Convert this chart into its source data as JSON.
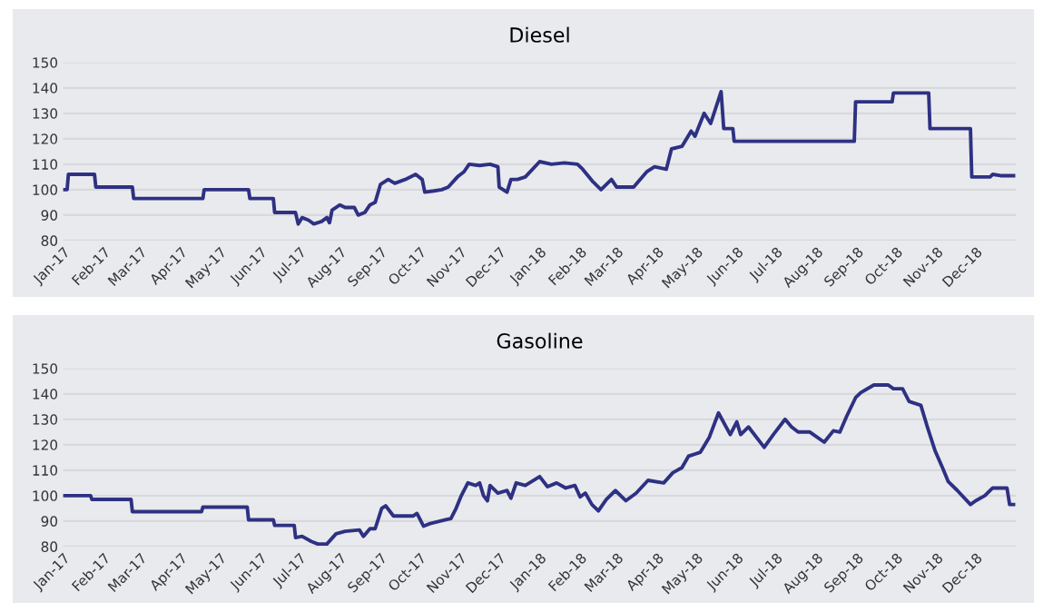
{
  "chart_data": [
    {
      "type": "line",
      "title": "Diesel",
      "ylim": [
        80,
        150
      ],
      "yticks": [
        80,
        90,
        100,
        110,
        120,
        130,
        140,
        150
      ],
      "grid": "y",
      "marker": "none",
      "line_style": "solid",
      "xlim": [
        "2017-01-01",
        "2019-01-01"
      ],
      "xticks": [
        {
          "value": "2017-01-01",
          "label": "Jan-17"
        },
        {
          "value": "2017-02-01",
          "label": "Feb-17"
        },
        {
          "value": "2017-03-01",
          "label": "Mar-17"
        },
        {
          "value": "2017-04-01",
          "label": "Apr-17"
        },
        {
          "value": "2017-05-01",
          "label": "May-17"
        },
        {
          "value": "2017-06-01",
          "label": "Jun-17"
        },
        {
          "value": "2017-07-01",
          "label": "Jul-17"
        },
        {
          "value": "2017-08-01",
          "label": "Aug-17"
        },
        {
          "value": "2017-09-01",
          "label": "Sep-17"
        },
        {
          "value": "2017-10-01",
          "label": "Oct-17"
        },
        {
          "value": "2017-11-01",
          "label": "Nov-17"
        },
        {
          "value": "2017-12-01",
          "label": "Dec-17"
        },
        {
          "value": "2018-01-01",
          "label": "Jan-18"
        },
        {
          "value": "2018-02-01",
          "label": "Feb-18"
        },
        {
          "value": "2018-03-01",
          "label": "Mar-18"
        },
        {
          "value": "2018-04-01",
          "label": "Apr-18"
        },
        {
          "value": "2018-05-01",
          "label": "May-18"
        },
        {
          "value": "2018-06-01",
          "label": "Jun-18"
        },
        {
          "value": "2018-07-01",
          "label": "Jul-18"
        },
        {
          "value": "2018-08-01",
          "label": "Aug-18"
        },
        {
          "value": "2018-09-01",
          "label": "Sep-18"
        },
        {
          "value": "2018-10-01",
          "label": "Oct-18"
        },
        {
          "value": "2018-11-01",
          "label": "Nov-18"
        },
        {
          "value": "2018-12-01",
          "label": "Dec-18"
        }
      ],
      "series": [
        {
          "color": "#2e3182",
          "x": [
            "2017-01-01",
            "2017-01-04",
            "2017-01-05",
            "2017-01-25",
            "2017-01-26",
            "2017-02-23",
            "2017-02-24",
            "2017-04-18",
            "2017-04-19",
            "2017-05-23",
            "2017-05-24",
            "2017-06-11",
            "2017-06-12",
            "2017-06-28",
            "2017-06-30",
            "2017-07-03",
            "2017-07-08",
            "2017-07-12",
            "2017-07-18",
            "2017-07-22",
            "2017-07-24",
            "2017-07-26",
            "2017-08-01",
            "2017-08-05",
            "2017-08-12",
            "2017-08-15",
            "2017-08-20",
            "2017-08-24",
            "2017-08-28",
            "2017-09-01",
            "2017-09-07",
            "2017-09-12",
            "2017-09-20",
            "2017-09-28",
            "2017-10-03",
            "2017-10-05",
            "2017-10-12",
            "2017-10-18",
            "2017-10-23",
            "2017-10-30",
            "2017-11-04",
            "2017-11-08",
            "2017-11-16",
            "2017-11-24",
            "2017-11-30",
            "2017-12-01",
            "2017-12-07",
            "2017-12-10",
            "2017-12-15",
            "2017-12-21",
            "2018-01-01",
            "2018-01-10",
            "2018-01-20",
            "2018-01-30",
            "2018-02-03",
            "2018-02-11",
            "2018-02-17",
            "2018-02-25",
            "2018-03-01",
            "2018-03-14",
            "2018-03-24",
            "2018-03-30",
            "2018-04-08",
            "2018-04-12",
            "2018-04-20",
            "2018-04-27",
            "2018-04-30",
            "2018-05-07",
            "2018-05-12",
            "2018-05-20",
            "2018-05-22",
            "2018-05-29",
            "2018-05-30",
            "2018-08-30",
            "2018-08-31",
            "2018-09-28",
            "2018-09-29",
            "2018-10-26",
            "2018-10-27",
            "2018-11-27",
            "2018-11-28",
            "2018-12-12",
            "2018-12-14",
            "2018-12-20",
            "2018-12-30"
          ],
          "values": [
            100,
            100,
            106,
            106,
            101,
            101,
            96.5,
            96.5,
            100,
            100,
            96.5,
            96.5,
            91,
            91,
            86.5,
            89,
            88,
            86.5,
            87.5,
            89,
            87,
            92,
            94,
            93,
            93,
            90,
            91,
            94,
            95,
            102,
            104,
            102.5,
            104,
            106,
            104,
            99,
            99.5,
            100,
            101,
            105,
            107,
            110,
            109.5,
            110,
            109,
            101,
            99,
            104,
            104,
            105,
            111,
            110,
            110.5,
            110,
            108,
            103,
            100,
            104,
            101,
            101,
            107,
            109,
            108,
            116,
            117,
            123,
            121,
            130,
            126,
            138.5,
            124,
            124,
            119,
            119,
            134.5,
            134.5,
            138,
            138,
            124,
            124,
            105,
            105,
            106,
            105.5,
            105.5
          ]
        }
      ]
    },
    {
      "type": "line",
      "title": "Gasoline",
      "ylim": [
        80,
        150
      ],
      "yticks": [
        80,
        90,
        100,
        110,
        120,
        130,
        140,
        150
      ],
      "grid": "y",
      "marker": "none",
      "line_style": "solid",
      "xlim": [
        "2017-01-01",
        "2019-01-01"
      ],
      "xticks": [
        {
          "value": "2017-01-01",
          "label": "Jan-17"
        },
        {
          "value": "2017-02-01",
          "label": "Feb-17"
        },
        {
          "value": "2017-03-01",
          "label": "Mar-17"
        },
        {
          "value": "2017-04-01",
          "label": "Apr-17"
        },
        {
          "value": "2017-05-01",
          "label": "May-17"
        },
        {
          "value": "2017-06-01",
          "label": "Jun-17"
        },
        {
          "value": "2017-07-01",
          "label": "Jul-17"
        },
        {
          "value": "2017-08-01",
          "label": "Aug-17"
        },
        {
          "value": "2017-09-01",
          "label": "Sep-17"
        },
        {
          "value": "2017-10-01",
          "label": "Oct-17"
        },
        {
          "value": "2017-11-01",
          "label": "Nov-17"
        },
        {
          "value": "2017-12-01",
          "label": "Dec-17"
        },
        {
          "value": "2018-01-01",
          "label": "Jan-18"
        },
        {
          "value": "2018-02-01",
          "label": "Feb-18"
        },
        {
          "value": "2018-03-01",
          "label": "Mar-18"
        },
        {
          "value": "2018-04-01",
          "label": "Apr-18"
        },
        {
          "value": "2018-05-01",
          "label": "May-18"
        },
        {
          "value": "2018-06-01",
          "label": "Jun-18"
        },
        {
          "value": "2018-07-01",
          "label": "Jul-18"
        },
        {
          "value": "2018-08-01",
          "label": "Aug-18"
        },
        {
          "value": "2018-09-01",
          "label": "Sep-18"
        },
        {
          "value": "2018-10-01",
          "label": "Oct-18"
        },
        {
          "value": "2018-11-01",
          "label": "Nov-18"
        },
        {
          "value": "2018-12-01",
          "label": "Dec-18"
        }
      ],
      "series": [
        {
          "color": "#2e3182",
          "x": [
            "2017-01-01",
            "2017-01-22",
            "2017-01-23",
            "2017-02-22",
            "2017-02-23",
            "2017-04-17",
            "2017-04-18",
            "2017-05-22",
            "2017-05-23",
            "2017-06-11",
            "2017-06-12",
            "2017-06-27",
            "2017-06-28",
            "2017-07-03",
            "2017-07-10",
            "2017-07-15",
            "2017-07-22",
            "2017-07-29",
            "2017-08-05",
            "2017-08-16",
            "2017-08-19",
            "2017-08-24",
            "2017-08-28",
            "2017-09-02",
            "2017-09-05",
            "2017-09-11",
            "2017-09-26",
            "2017-09-29",
            "2017-10-04",
            "2017-10-09",
            "2017-10-21",
            "2017-10-25",
            "2017-10-29",
            "2017-11-02",
            "2017-11-07",
            "2017-11-13",
            "2017-11-16",
            "2017-11-19",
            "2017-11-22",
            "2017-11-24",
            "2017-11-30",
            "2017-12-07",
            "2017-12-10",
            "2017-12-14",
            "2017-12-21",
            "2018-01-01",
            "2018-01-07",
            "2018-01-14",
            "2018-01-21",
            "2018-01-28",
            "2018-02-01",
            "2018-02-05",
            "2018-02-10",
            "2018-02-15",
            "2018-02-21",
            "2018-02-28",
            "2018-03-08",
            "2018-03-16",
            "2018-03-25",
            "2018-04-06",
            "2018-04-13",
            "2018-04-20",
            "2018-04-25",
            "2018-05-04",
            "2018-05-11",
            "2018-05-18",
            "2018-05-27",
            "2018-06-01",
            "2018-06-04",
            "2018-06-10",
            "2018-06-22",
            "2018-06-29",
            "2018-07-08",
            "2018-07-13",
            "2018-07-18",
            "2018-07-27",
            "2018-08-07",
            "2018-08-14",
            "2018-08-19",
            "2018-08-24",
            "2018-08-31",
            "2018-09-04",
            "2018-09-14",
            "2018-09-25",
            "2018-09-29",
            "2018-10-06",
            "2018-10-11",
            "2018-10-20",
            "2018-10-25",
            "2018-10-31",
            "2018-11-06",
            "2018-11-10",
            "2018-11-17",
            "2018-11-27",
            "2018-12-01",
            "2018-12-08",
            "2018-12-14",
            "2018-12-25",
            "2018-12-27",
            "2018-12-30"
          ],
          "values": [
            100,
            100,
            98.5,
            98.5,
            93.7,
            93.7,
            95.5,
            95.5,
            90.5,
            90.5,
            88.3,
            88.3,
            83.5,
            84,
            82,
            81,
            81,
            85,
            86,
            86.5,
            84,
            87,
            87,
            95,
            96,
            92,
            92,
            93,
            88,
            89,
            90.5,
            91,
            95,
            100,
            105,
            104,
            105,
            100,
            98,
            104,
            101,
            102,
            99,
            105,
            104,
            107.5,
            103.5,
            105,
            103,
            104,
            99.5,
            101,
            96.5,
            94,
            98.5,
            102,
            98,
            101,
            106,
            105,
            109,
            111,
            115.5,
            117,
            123,
            132.5,
            124,
            129,
            124,
            127,
            119,
            124,
            130,
            127,
            125,
            125,
            121,
            125.5,
            125,
            131,
            138.5,
            140.5,
            143.5,
            143.5,
            142,
            142,
            137,
            135.5,
            127,
            117.5,
            110.5,
            105.5,
            102,
            96.5,
            98,
            100,
            103,
            103,
            96.5,
            96.5
          ]
        }
      ]
    }
  ]
}
